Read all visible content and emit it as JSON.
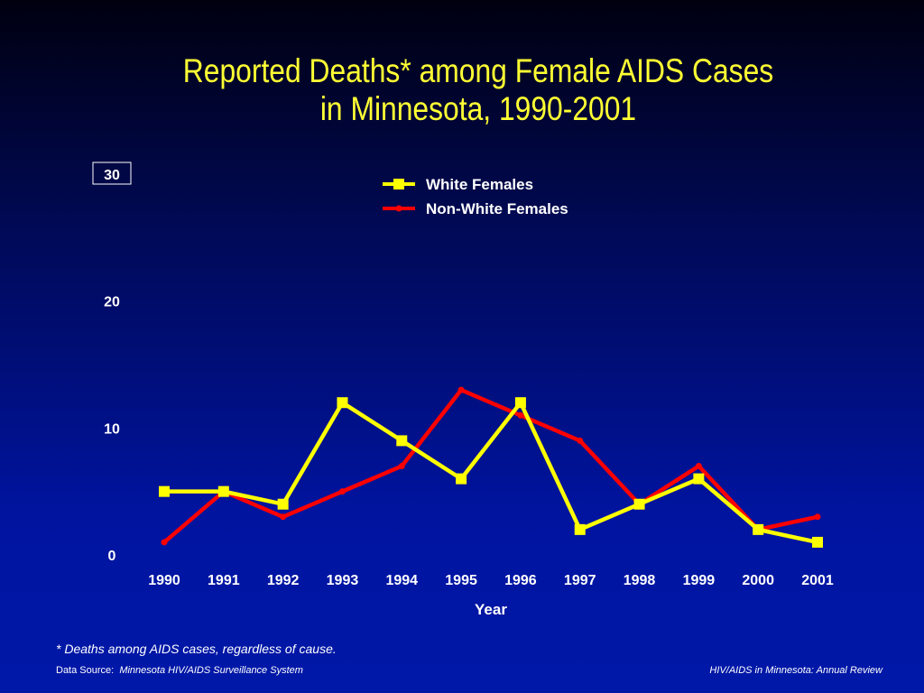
{
  "chart_data": {
    "type": "line",
    "title": "Reported Deaths* among Female AIDS Cases",
    "subtitle": "in Minnesota, 1990-2001",
    "xlabel": "Year",
    "ylabel": "",
    "x": [
      "1990",
      "1991",
      "1992",
      "1993",
      "1994",
      "1995",
      "1996",
      "1997",
      "1998",
      "1999",
      "2000",
      "2001"
    ],
    "yticks": [
      "0",
      "10",
      "20",
      "30"
    ],
    "ylim": [
      0,
      30
    ],
    "grid": false,
    "legend_position": "top-center",
    "series": [
      {
        "name": "White Females",
        "color": "#ffff00",
        "marker": "square",
        "values": [
          5,
          5,
          4,
          12,
          9,
          6,
          12,
          2,
          4,
          6,
          2,
          1
        ]
      },
      {
        "name": "Non-White Females",
        "color": "#ff0000",
        "marker": "circle",
        "values": [
          1,
          5,
          3,
          5,
          7,
          13,
          11,
          9,
          4,
          7,
          2,
          3
        ]
      }
    ]
  },
  "footnote": "* Deaths among AIDS cases, regardless of cause.",
  "source": {
    "label": "Data Source:",
    "name": "Minnesota HIV/AIDS Surveillance System"
  },
  "review": "HIV/AIDS in Minnesota: Annual Review"
}
